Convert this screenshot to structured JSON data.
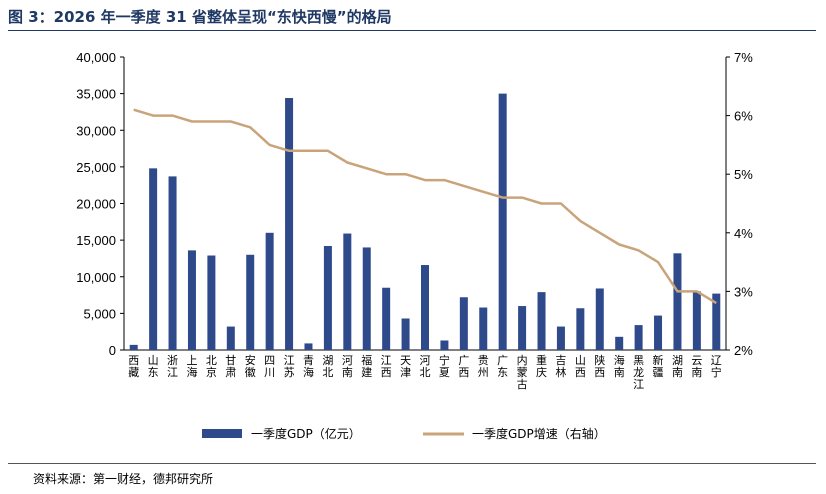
{
  "title": "图 3：2026 年一季度 31 省整体呈现“东快西慢”的格局",
  "source": "资料来源：第一财经，德邦研究所",
  "chart_data": {
    "type": "bar+line",
    "categories": [
      "西藏",
      "山东",
      "浙江",
      "上海",
      "北京",
      "甘肃",
      "安徽",
      "四川",
      "江苏",
      "青海",
      "湖北",
      "河南",
      "福建",
      "江西",
      "天津",
      "河北",
      "宁夏",
      "广西",
      "贵州",
      "广东",
      "内蒙古",
      "重庆",
      "吉林",
      "山西",
      "陕西",
      "海南",
      "黑龙江",
      "新疆",
      "湖南",
      "云南",
      "辽宁"
    ],
    "series": [
      {
        "name": "一季度GDP（亿元）",
        "type": "bar",
        "axis": "left",
        "color": "#2e4a8b",
        "values": [
          700,
          24800,
          23700,
          13600,
          12900,
          3200,
          13000,
          16000,
          34400,
          900,
          14200,
          15900,
          14000,
          8500,
          4300,
          11600,
          1300,
          7200,
          5800,
          35000,
          6000,
          7900,
          3200,
          5700,
          8400,
          1800,
          3400,
          4700,
          13200,
          8000,
          7700
        ]
      },
      {
        "name": "一季度GDP增速（右轴）",
        "type": "line",
        "axis": "right",
        "color": "#c9a47a",
        "values": [
          6.1,
          6.0,
          6.0,
          5.9,
          5.9,
          5.9,
          5.8,
          5.5,
          5.4,
          5.4,
          5.4,
          5.2,
          5.1,
          5.0,
          5.0,
          4.9,
          4.9,
          4.8,
          4.7,
          4.6,
          4.6,
          4.5,
          4.5,
          4.2,
          4.0,
          3.8,
          3.7,
          3.5,
          3.0,
          3.0,
          2.8
        ]
      }
    ],
    "y_left": {
      "min": 0,
      "max": 40000,
      "step": 5000,
      "ticks": [
        "0",
        "5,000",
        "10,000",
        "15,000",
        "20,000",
        "25,000",
        "30,000",
        "35,000",
        "40,000"
      ]
    },
    "y_right": {
      "min": 2,
      "max": 7,
      "step": 1,
      "ticks": [
        "2%",
        "3%",
        "4%",
        "5%",
        "6%",
        "7%"
      ]
    },
    "grid": false,
    "legend_position": "bottom"
  }
}
